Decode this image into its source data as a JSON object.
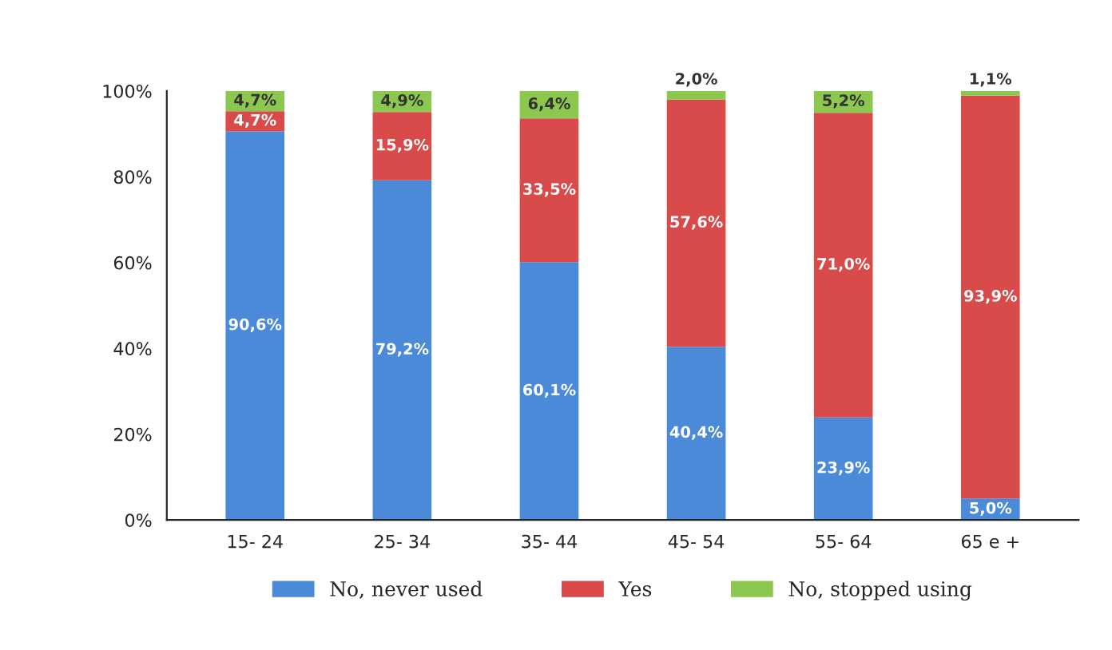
{
  "chart_data": {
    "type": "bar",
    "stacked": true,
    "categories": [
      "15- 24",
      "25- 34",
      "35- 44",
      "45- 54",
      "55- 64",
      "65 e +"
    ],
    "series": [
      {
        "name": "No, never used",
        "color": "#4a8ad8",
        "values": [
          90.6,
          79.2,
          60.1,
          40.4,
          23.9,
          5.0
        ],
        "value_labels": [
          "90,6%",
          "79,2%",
          "60,1%",
          "40,4%",
          "23,9%",
          "5,0%"
        ]
      },
      {
        "name": "Yes",
        "color": "#d94a4a",
        "values": [
          4.7,
          15.9,
          33.5,
          57.6,
          71.0,
          93.9
        ],
        "value_labels": [
          "4,7%",
          "15,9%",
          "33,5%",
          "57,6%",
          "71,0%",
          "93,9%"
        ]
      },
      {
        "name": "No, stopped using",
        "color": "#8cc850",
        "values": [
          4.7,
          4.9,
          6.4,
          2.0,
          5.2,
          1.1
        ],
        "value_labels": [
          "4,7%",
          "4,9%",
          "6,4%",
          "2,0%",
          "5,2%",
          "1,1%"
        ]
      }
    ],
    "ylim": [
      0,
      100
    ],
    "yticks": [
      {
        "value": 0,
        "label": "0%"
      },
      {
        "value": 20,
        "label": "20%"
      },
      {
        "value": 40,
        "label": "40%"
      },
      {
        "value": 60,
        "label": "60%"
      },
      {
        "value": 80,
        "label": "80%"
      },
      {
        "value": 100,
        "label": "100%"
      }
    ],
    "grid": false,
    "legend": "bottom"
  }
}
